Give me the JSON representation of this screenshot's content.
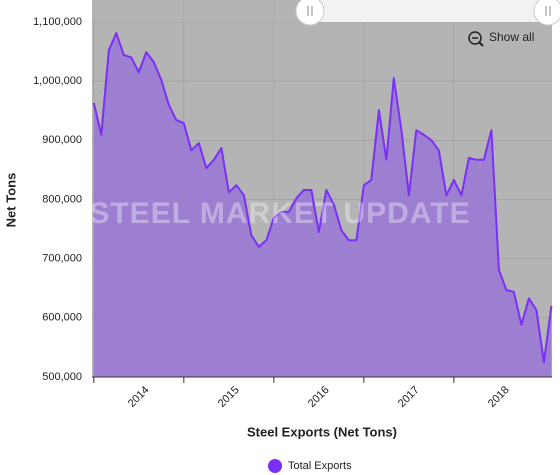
{
  "chart_data": {
    "type": "area",
    "y_label": "Net Tons",
    "x_label": "Steel Exports (Net Tons)",
    "watermark": "STEEL MARKET UPDATE",
    "button": "Show all",
    "x": [
      2014,
      2014.083,
      2014.167,
      2014.25,
      2014.333,
      2014.417,
      2014.5,
      2014.583,
      2014.667,
      2014.75,
      2014.833,
      2014.917,
      2015,
      2015.083,
      2015.167,
      2015.25,
      2015.333,
      2015.417,
      2015.5,
      2015.583,
      2015.667,
      2015.75,
      2015.833,
      2015.917,
      2016,
      2016.083,
      2016.167,
      2016.25,
      2016.333,
      2016.417,
      2016.5,
      2016.583,
      2016.667,
      2016.75,
      2016.833,
      2016.917,
      2017,
      2017.083,
      2017.167,
      2017.25,
      2017.333,
      2017.417,
      2017.5,
      2017.583,
      2017.667,
      2017.75,
      2017.833,
      2017.917,
      2018,
      2018.083,
      2018.167,
      2018.25,
      2018.333,
      2018.417,
      2018.5,
      2018.583,
      2018.667,
      2018.75,
      2018.833,
      2018.917,
      2019,
      2019.083
    ],
    "series": [
      {
        "name": "Total Exports",
        "color": "#7b2ff7",
        "fill": "#9d7fd2",
        "values": [
          963000,
          909000,
          1052000,
          1081000,
          1044000,
          1040000,
          1015000,
          1049000,
          1032000,
          1002000,
          960000,
          934000,
          929000,
          883000,
          895000,
          853000,
          867000,
          887000,
          812000,
          824000,
          807000,
          740000,
          720000,
          731000,
          769000,
          779000,
          779000,
          802000,
          816000,
          816000,
          745000,
          816000,
          791000,
          748000,
          731000,
          731000,
          824000,
          833000,
          951000,
          867000,
          1005000,
          917000,
          807000,
          917000,
          909000,
          900000,
          883000,
          807000,
          833000,
          807000,
          870000,
          867000,
          867000,
          917000,
          681000,
          647000,
          644000,
          588000,
          633000,
          613000,
          525000,
          620000
        ]
      }
    ],
    "xlim": [
      2013.98,
      2019.09
    ],
    "xticks": [
      2014,
      2015,
      2016,
      2017,
      2018
    ],
    "ylim": [
      500000,
      1137000
    ],
    "yticks": [
      {
        "value": 500000,
        "label": "500,000"
      },
      {
        "value": 600000,
        "label": "600,000"
      },
      {
        "value": 700000,
        "label": "700,000"
      },
      {
        "value": 800000,
        "label": "800,000"
      },
      {
        "value": 900000,
        "label": "900,000"
      },
      {
        "value": 1000000,
        "label": "1,000,000"
      },
      {
        "value": 1100000,
        "label": "1,100,000"
      }
    ],
    "grid": true,
    "legend": "bottom"
  }
}
